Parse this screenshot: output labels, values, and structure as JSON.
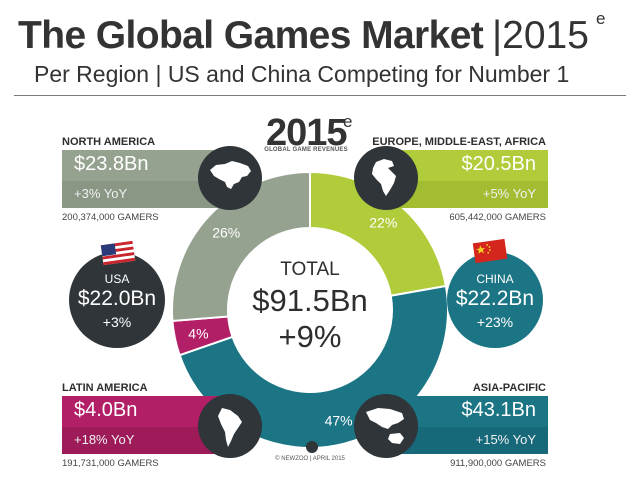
{
  "header": {
    "title": "The Global Games Market",
    "year": "|2015",
    "year_mark": "e",
    "subtitle": "Per Region | US and China Competing for Number 1"
  },
  "center": {
    "year": "2015",
    "year_mark": "e",
    "caption": "GLOBAL GAME REVENUES",
    "total_label": "TOTAL",
    "total_value": "$91.5Bn",
    "total_growth": "+9%"
  },
  "regions": {
    "north_america": {
      "name": "NORTH AMERICA",
      "revenue": "$23.8Bn",
      "growth": "+3% YoY",
      "gamers": "200,374,000 GAMERS",
      "icon": "north-america-map-icon"
    },
    "emea": {
      "name": "EUROPE, MIDDLE-EAST, AFRICA",
      "revenue": "$20.5Bn",
      "growth": "+5% YoY",
      "gamers": "605,442,000 GAMERS",
      "icon": "europe-africa-map-icon"
    },
    "latin_america": {
      "name": "LATIN AMERICA",
      "revenue": "$4.0Bn",
      "growth": "+18% YoY",
      "gamers": "191,731,000 GAMERS",
      "icon": "south-america-map-icon"
    },
    "asia_pacific": {
      "name": "ASIA-PACIFIC",
      "revenue": "$43.1Bn",
      "growth": "+15% YoY",
      "gamers": "911,900,000 GAMERS",
      "icon": "asia-pacific-map-icon"
    }
  },
  "countries": {
    "usa": {
      "name": "USA",
      "revenue": "$22.0Bn",
      "growth": "+3%",
      "icon": "usa-flag-icon"
    },
    "china": {
      "name": "CHINA",
      "revenue": "$22.2Bn",
      "growth": "+23%",
      "icon": "china-flag-icon"
    }
  },
  "footer": {
    "credit": "© NEWZOO | APRIL 2015"
  },
  "colors": {
    "north_america": "#96a290",
    "emea": "#b1cc3a",
    "latin_america": "#b31f67",
    "asia_pacific": "#1b7585",
    "dark": "#2f3539"
  },
  "chart_data": {
    "type": "pie",
    "title": "",
    "categories": [
      "EUROPE, MIDDLE-EAST, AFRICA",
      "ASIA-PACIFIC",
      "LATIN AMERICA",
      "NORTH AMERICA"
    ],
    "values": [
      22,
      47,
      4,
      26
    ],
    "labels": [
      "22%",
      "47%",
      "4%",
      "26%"
    ],
    "colors": [
      "#b1cc3a",
      "#1b7585",
      "#b31f67",
      "#96a290"
    ],
    "donut": true
  }
}
